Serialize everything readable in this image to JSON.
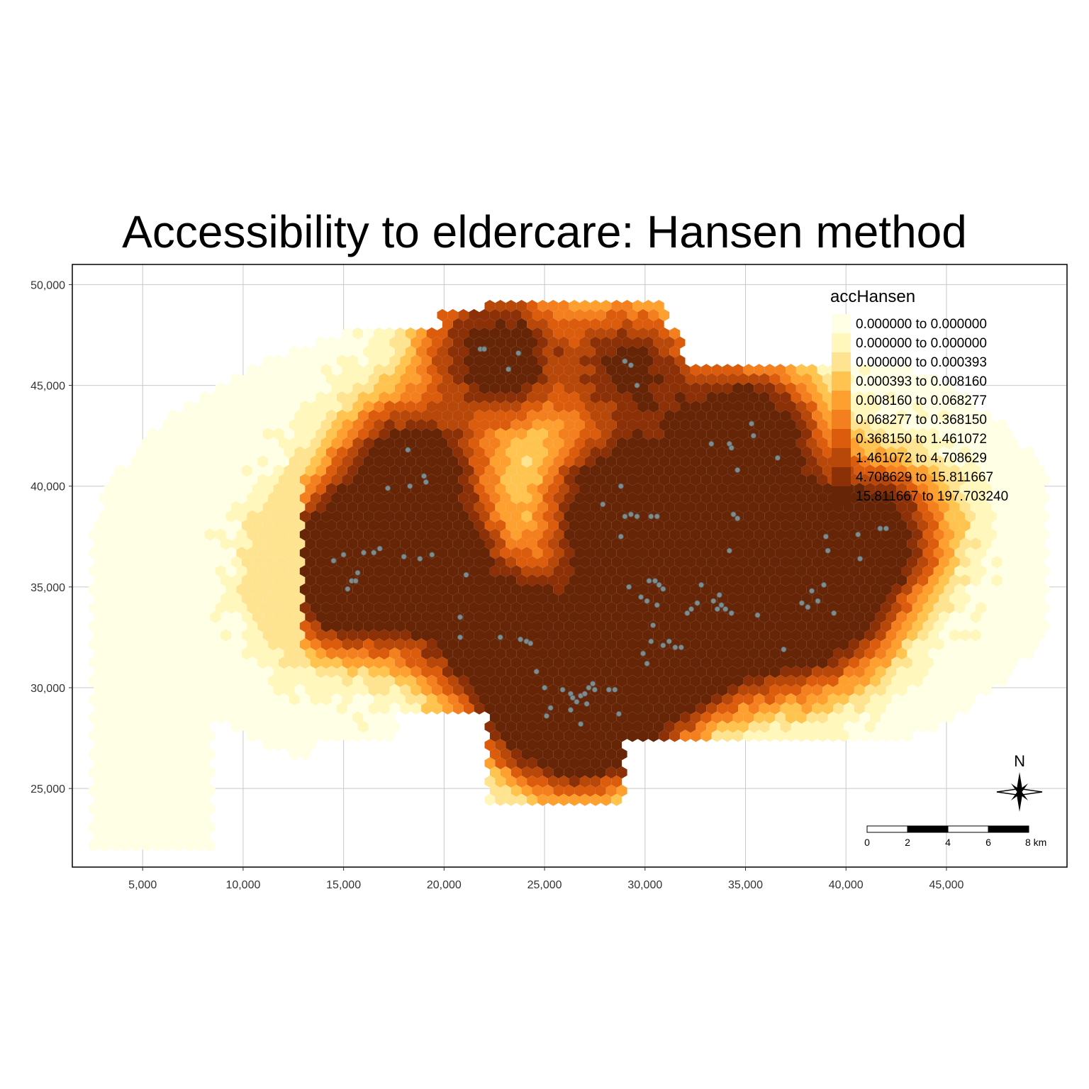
{
  "title": "Accessibility to eldercare: Hansen method",
  "chart_data": {
    "type": "heatmap",
    "subtype": "hexagon choropleth map with point overlay",
    "xlim": [
      1500,
      51000
    ],
    "ylim": [
      21100,
      51000
    ],
    "x_ticks": [
      5000,
      10000,
      15000,
      20000,
      25000,
      30000,
      35000,
      40000,
      45000
    ],
    "x_tick_labels": [
      "5,000",
      "10,000",
      "15,000",
      "20,000",
      "25,000",
      "30,000",
      "35,000",
      "40,000",
      "45,000"
    ],
    "y_ticks": [
      25000,
      30000,
      35000,
      40000,
      45000,
      50000
    ],
    "y_tick_labels": [
      "25,000",
      "30,000",
      "35,000",
      "40,000",
      "45,000",
      "50,000"
    ],
    "grid": true,
    "legend": {
      "title": "accHansen",
      "position": "top-right",
      "classes": [
        {
          "label": "0.000000 to 0.000000",
          "color": "#ffffe5"
        },
        {
          "label": "0.000000 to 0.000000",
          "color": "#fff7bc"
        },
        {
          "label": "0.000000 to 0.000393",
          "color": "#fee391"
        },
        {
          "label": "0.000393 to 0.008160",
          "color": "#fec44f"
        },
        {
          "label": "0.008160 to 0.068277",
          "color": "#fea030"
        },
        {
          "label": "0.068277 to 0.368150",
          "color": "#f47f1f"
        },
        {
          "label": "0.368150 to 1.461072",
          "color": "#dc5c0e"
        },
        {
          "label": "1.461072 to 4.708629",
          "color": "#b8470a"
        },
        {
          "label": "4.708629 to 15.811667",
          "color": "#8c3008"
        },
        {
          "label": "15.811667 to 197.703240",
          "color": "#662506"
        }
      ]
    },
    "eldercare_point_color": "#7f8c8d",
    "eldercare_points": [
      [
        21800,
        46800
      ],
      [
        22000,
        46800
      ],
      [
        23200,
        45800
      ],
      [
        23700,
        46600
      ],
      [
        29000,
        46200
      ],
      [
        29300,
        46000
      ],
      [
        29600,
        45000
      ],
      [
        18200,
        41800
      ],
      [
        17200,
        39900
      ],
      [
        18300,
        40000
      ],
      [
        19000,
        40500
      ],
      [
        19100,
        40200
      ],
      [
        14500,
        36300
      ],
      [
        15000,
        36600
      ],
      [
        15200,
        34900
      ],
      [
        15400,
        35300
      ],
      [
        15600,
        35300
      ],
      [
        15700,
        35700
      ],
      [
        16000,
        36700
      ],
      [
        16500,
        36700
      ],
      [
        16800,
        36900
      ],
      [
        18000,
        36500
      ],
      [
        18800,
        36400
      ],
      [
        19400,
        36600
      ],
      [
        21100,
        35600
      ],
      [
        20800,
        33500
      ],
      [
        20800,
        32500
      ],
      [
        22800,
        32500
      ],
      [
        23800,
        32400
      ],
      [
        24100,
        32300
      ],
      [
        24300,
        32200
      ],
      [
        24600,
        30800
      ],
      [
        25000,
        30000
      ],
      [
        25300,
        29000
      ],
      [
        25900,
        29900
      ],
      [
        26300,
        29700
      ],
      [
        26400,
        29500
      ],
      [
        26600,
        29300
      ],
      [
        26800,
        29600
      ],
      [
        27000,
        29700
      ],
      [
        27200,
        30000
      ],
      [
        27400,
        30200
      ],
      [
        27500,
        29900
      ],
      [
        27100,
        29200
      ],
      [
        26300,
        28900
      ],
      [
        26800,
        28200
      ],
      [
        25100,
        28600
      ],
      [
        28200,
        29900
      ],
      [
        28500,
        29900
      ],
      [
        28700,
        28700
      ],
      [
        27900,
        39100
      ],
      [
        28800,
        37500
      ],
      [
        28800,
        40000
      ],
      [
        29000,
        38500
      ],
      [
        29300,
        38600
      ],
      [
        29600,
        38500
      ],
      [
        30300,
        38500
      ],
      [
        30600,
        38500
      ],
      [
        29200,
        35000
      ],
      [
        29800,
        34500
      ],
      [
        30100,
        34300
      ],
      [
        30200,
        35300
      ],
      [
        30500,
        35300
      ],
      [
        30700,
        35100
      ],
      [
        30900,
        34900
      ],
      [
        30600,
        34100
      ],
      [
        30400,
        33100
      ],
      [
        30300,
        32300
      ],
      [
        29900,
        31700
      ],
      [
        30100,
        31200
      ],
      [
        30900,
        32100
      ],
      [
        31200,
        32300
      ],
      [
        31500,
        32000
      ],
      [
        31800,
        32000
      ],
      [
        32100,
        33700
      ],
      [
        32300,
        33900
      ],
      [
        32600,
        34200
      ],
      [
        32800,
        35100
      ],
      [
        33300,
        42100
      ],
      [
        34200,
        42100
      ],
      [
        34300,
        41900
      ],
      [
        34600,
        40800
      ],
      [
        35300,
        43100
      ],
      [
        35400,
        42500
      ],
      [
        36600,
        41400
      ],
      [
        34400,
        38600
      ],
      [
        34600,
        38400
      ],
      [
        34200,
        36800
      ],
      [
        33400,
        34300
      ],
      [
        33800,
        34100
      ],
      [
        34000,
        33900
      ],
      [
        34300,
        33700
      ],
      [
        33600,
        33900
      ],
      [
        33700,
        34600
      ],
      [
        35600,
        33600
      ],
      [
        36900,
        31900
      ],
      [
        37800,
        34200
      ],
      [
        38100,
        34000
      ],
      [
        38300,
        34800
      ],
      [
        38600,
        34300
      ],
      [
        38900,
        35100
      ],
      [
        39400,
        33700
      ],
      [
        39000,
        37500
      ],
      [
        39100,
        36800
      ],
      [
        40600,
        37600
      ],
      [
        40700,
        36400
      ],
      [
        41700,
        37900
      ],
      [
        42000,
        37900
      ]
    ],
    "scale_bar": {
      "labels": [
        "0",
        "2",
        "4",
        "6",
        "8 km"
      ],
      "unit": "km"
    },
    "north_arrow_label": "N"
  }
}
